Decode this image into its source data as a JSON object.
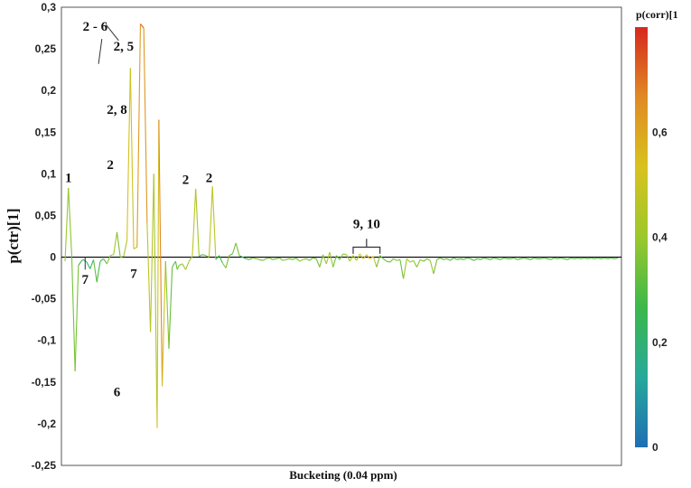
{
  "chart_data": {
    "type": "line",
    "title": "",
    "xlabel": "Bucketing (0.04 ppm)",
    "ylabel": "p(ctr)[1]",
    "ylim": [
      -0.25,
      0.3
    ],
    "yticks": [
      "0,3",
      "0,25",
      "0,2",
      "0,15",
      "0,1",
      "0,05",
      "0",
      "-0,05",
      "-0,1",
      "-0,15",
      "-0,2",
      "-0,25"
    ],
    "grid": false,
    "color_scale": {
      "label": "p(corr)[1",
      "min": 0,
      "max": 0.8,
      "ticks": [
        "0",
        "0,2",
        "0,4",
        "0,6"
      ],
      "colors": [
        "#1f6eb4",
        "#27a99a",
        "#3cb84a",
        "#9cc82c",
        "#d8c21e",
        "#e08a24",
        "#d6281e"
      ]
    },
    "series": [
      {
        "x": [
          0,
          2,
          4,
          6,
          8,
          10,
          11,
          13,
          15,
          17,
          19,
          21,
          23,
          25,
          27,
          29,
          31,
          33,
          35,
          37,
          39,
          41,
          43,
          45,
          47,
          49,
          51,
          53,
          55,
          56,
          58,
          60,
          62,
          64,
          66,
          67,
          68,
          70,
          72,
          74,
          76,
          78,
          80,
          82,
          84,
          86,
          88,
          90,
          92,
          94,
          96,
          98,
          100,
          102,
          104,
          106,
          108,
          110,
          112,
          114,
          116,
          118,
          120,
          122,
          124,
          126,
          128,
          130,
          132,
          134,
          136,
          138,
          140,
          142,
          144,
          146,
          148,
          150,
          152,
          154,
          156,
          158,
          160,
          162,
          164,
          166,
          168,
          170,
          172,
          174,
          176,
          178,
          180,
          182,
          184,
          186,
          188,
          190,
          192,
          194,
          196,
          198,
          200,
          202,
          204,
          206,
          208,
          210,
          212,
          214,
          216,
          218,
          220,
          222,
          224,
          226,
          228,
          230,
          232,
          234,
          236,
          238,
          240,
          242,
          244,
          246,
          248,
          250,
          252,
          254,
          256,
          258,
          260,
          262,
          264,
          266,
          268,
          270,
          272,
          274,
          276,
          278,
          280,
          282,
          284,
          286,
          288,
          290,
          292,
          294,
          296,
          298,
          300,
          302,
          304,
          306,
          308,
          310,
          312,
          314,
          316,
          318,
          320,
          322,
          324,
          326,
          328,
          330
        ],
        "y": [
          -0.005,
          0.083,
          0.002,
          -0.137,
          -0.01,
          -0.004,
          -0.003,
          -0.006,
          -0.014,
          -0.003,
          -0.03,
          -0.005,
          -0.002,
          -0.008,
          0.002,
          0.003,
          0.03,
          0.0,
          0.001,
          0.02,
          0.227,
          0.01,
          0.012,
          0.28,
          0.275,
          0.04,
          -0.09,
          0.1,
          -0.205,
          0.165,
          -0.155,
          -0.005,
          -0.11,
          -0.012,
          -0.005,
          -0.015,
          -0.01,
          -0.008,
          -0.015,
          -0.005,
          0.001,
          0.082,
          0.001,
          0.003,
          0.002,
          0.0,
          0.085,
          -0.003,
          0.002,
          -0.007,
          -0.013,
          0.002,
          0.004,
          0.017,
          0.002,
          0.0,
          -0.002,
          -0.003,
          -0.001,
          -0.002,
          -0.003,
          -0.004,
          -0.002,
          -0.001,
          -0.003,
          -0.002,
          -0.001,
          -0.004,
          -0.003,
          -0.002,
          -0.003,
          -0.001,
          -0.005,
          -0.003,
          -0.002,
          -0.004,
          -0.001,
          -0.002,
          -0.012,
          0.003,
          -0.008,
          0.006,
          -0.012,
          0.002,
          -0.003,
          0.004,
          0.003,
          -0.005,
          0.002,
          -0.004,
          0.004,
          -0.002,
          0.003,
          -0.002,
          0.001,
          -0.012,
          0.002,
          -0.002,
          -0.005,
          -0.006,
          -0.002,
          -0.004,
          -0.003,
          -0.026,
          -0.002,
          -0.006,
          -0.004,
          -0.012,
          -0.003,
          -0.005,
          -0.002,
          -0.004,
          -0.02,
          -0.003,
          -0.001,
          -0.003,
          -0.002,
          -0.004,
          -0.001,
          -0.003,
          -0.002,
          -0.003,
          -0.001,
          -0.002,
          -0.004,
          -0.002,
          -0.003,
          -0.001,
          -0.002,
          -0.003,
          -0.001,
          -0.002,
          -0.003,
          -0.001,
          -0.002,
          -0.002,
          -0.001,
          -0.003,
          -0.002,
          -0.001,
          -0.002,
          -0.003,
          -0.001,
          -0.002,
          -0.002,
          -0.001,
          -0.002,
          -0.003,
          -0.001,
          -0.002,
          -0.001,
          -0.002,
          -0.003,
          -0.001,
          -0.002,
          -0.001,
          -0.002,
          -0.001,
          -0.002,
          -0.001,
          -0.002,
          -0.001,
          -0.002,
          -0.001,
          -0.002,
          -0.001,
          -0.002,
          -0.001
        ],
        "corr": [
          0.35,
          0.45,
          0.3,
          0.4,
          0.3,
          0.2,
          0.15,
          0.25,
          0.15,
          0.3,
          0.35,
          0.2,
          0.3,
          0.35,
          0.4,
          0.45,
          0.4,
          0.3,
          0.4,
          0.45,
          0.6,
          0.4,
          0.5,
          0.75,
          0.72,
          0.55,
          0.4,
          0.5,
          0.35,
          0.72,
          0.62,
          0.4,
          0.35,
          0.3,
          0.3,
          0.35,
          0.4,
          0.35,
          0.45,
          0.4,
          0.4,
          0.55,
          0.3,
          0.2,
          0.4,
          0.3,
          0.65,
          0.3,
          0.2,
          0.35,
          0.4,
          0.3,
          0.3,
          0.4,
          0.3,
          0.2,
          0.3,
          0.3,
          0.3,
          0.4,
          0.35,
          0.3,
          0.4,
          0.3,
          0.35,
          0.3,
          0.35,
          0.35,
          0.4,
          0.3,
          0.35,
          0.3,
          0.4,
          0.4,
          0.35,
          0.35,
          0.3,
          0.35,
          0.35,
          0.35,
          0.45,
          0.4,
          0.4,
          0.3,
          0.35,
          0.35,
          0.4,
          0.4,
          0.45,
          0.4,
          0.5,
          0.5,
          0.55,
          0.55,
          0.5,
          0.4,
          0.3,
          0.35,
          0.3,
          0.35,
          0.35,
          0.4,
          0.3,
          0.35,
          0.45,
          0.45,
          0.35,
          0.4,
          0.35,
          0.35,
          0.3,
          0.45,
          0.35,
          0.35,
          0.3,
          0.3,
          0.35,
          0.3,
          0.3,
          0.3,
          0.3,
          0.3,
          0.3,
          0.3,
          0.3,
          0.3,
          0.3,
          0.3,
          0.3,
          0.3,
          0.3,
          0.3,
          0.3,
          0.3,
          0.3,
          0.3,
          0.3,
          0.3,
          0.3,
          0.3,
          0.3,
          0.3,
          0.3,
          0.3,
          0.3,
          0.3,
          0.3,
          0.3,
          0.3,
          0.3,
          0.3,
          0.3,
          0.3,
          0.3,
          0.3,
          0.3,
          0.3,
          0.3,
          0.3,
          0.3,
          0.3,
          0.3,
          0.3,
          0.3,
          0.3,
          0.3,
          0.3,
          0.3
        ]
      }
    ],
    "annotations": [
      {
        "text": "1",
        "x": 2,
        "y": 0.09
      },
      {
        "text": "2 - 6",
        "x": 18,
        "y": 0.272
      },
      {
        "text": "2, 5",
        "x": 35,
        "y": 0.248
      },
      {
        "text": "2, 8",
        "x": 31,
        "y": 0.172
      },
      {
        "text": "2",
        "x": 27,
        "y": 0.106
      },
      {
        "text": "2",
        "x": 72,
        "y": 0.088
      },
      {
        "text": "2",
        "x": 86,
        "y": 0.09
      },
      {
        "text": "7",
        "x": 12,
        "y": -0.032
      },
      {
        "text": "7",
        "x": 41,
        "y": -0.025
      },
      {
        "text": "6",
        "x": 31,
        "y": -0.167
      },
      {
        "text": "9, 10",
        "x": 180,
        "y": 0.035
      }
    ]
  }
}
